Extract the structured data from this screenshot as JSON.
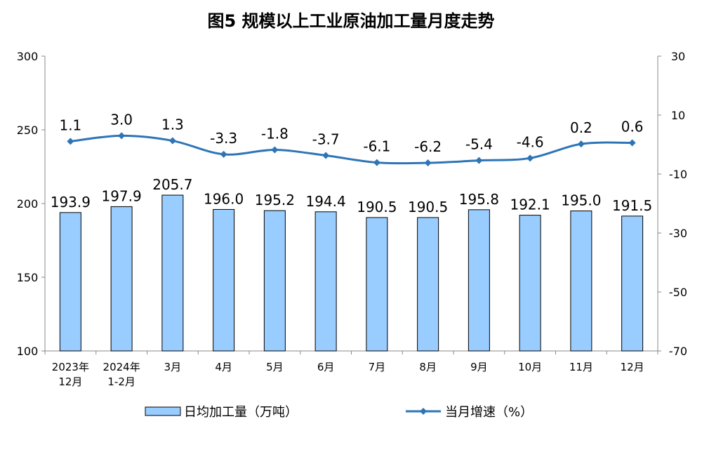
{
  "chart_data": {
    "type": "bar+line",
    "title": "图5  规模以上工业原油加工量月度走势",
    "categories": [
      [
        "2023年",
        "12月"
      ],
      [
        "2024年",
        "1-2月"
      ],
      [
        "3月"
      ],
      [
        "4月"
      ],
      [
        "5月"
      ],
      [
        "6月"
      ],
      [
        "7月"
      ],
      [
        "8月"
      ],
      [
        "9月"
      ],
      [
        "10月"
      ],
      [
        "11月"
      ],
      [
        "12月"
      ]
    ],
    "series": [
      {
        "name": "日均加工量（万吨）",
        "type": "bar",
        "axis": "left",
        "values": [
          193.9,
          197.9,
          205.7,
          196.0,
          195.2,
          194.4,
          190.5,
          190.5,
          195.8,
          192.1,
          195.0,
          191.5
        ],
        "labels": [
          "193.9",
          "197.9",
          "205.7",
          "196.0",
          "195.2",
          "194.4",
          "190.5",
          "190.5",
          "195.8",
          "192.1",
          "195.0",
          "191.5"
        ]
      },
      {
        "name": "当月增速（%）",
        "type": "line",
        "axis": "right",
        "values": [
          1.1,
          3.0,
          1.3,
          -3.3,
          -1.8,
          -3.7,
          -6.1,
          -6.2,
          -5.4,
          -4.6,
          0.2,
          0.6
        ],
        "labels": [
          "1.1",
          "3.0",
          "1.3",
          "-3.3",
          "-1.8",
          "-3.7",
          "-6.1",
          "-6.2",
          "-5.4",
          "-4.6",
          "0.2",
          "0.6"
        ]
      }
    ],
    "y_left": {
      "min": 100,
      "max": 300,
      "ticks": [
        "100",
        "150",
        "200",
        "250",
        "300"
      ]
    },
    "y_right": {
      "min": -70,
      "max": 30,
      "ticks": [
        "-70",
        "-50",
        "-30",
        "-10",
        "10",
        "30"
      ]
    },
    "grid": false,
    "legend_position": "bottom-center",
    "colors": {
      "bar_fill": "#99ccff",
      "bar_stroke": "#000000",
      "line": "#2e75b6",
      "axis": "#888888"
    }
  }
}
